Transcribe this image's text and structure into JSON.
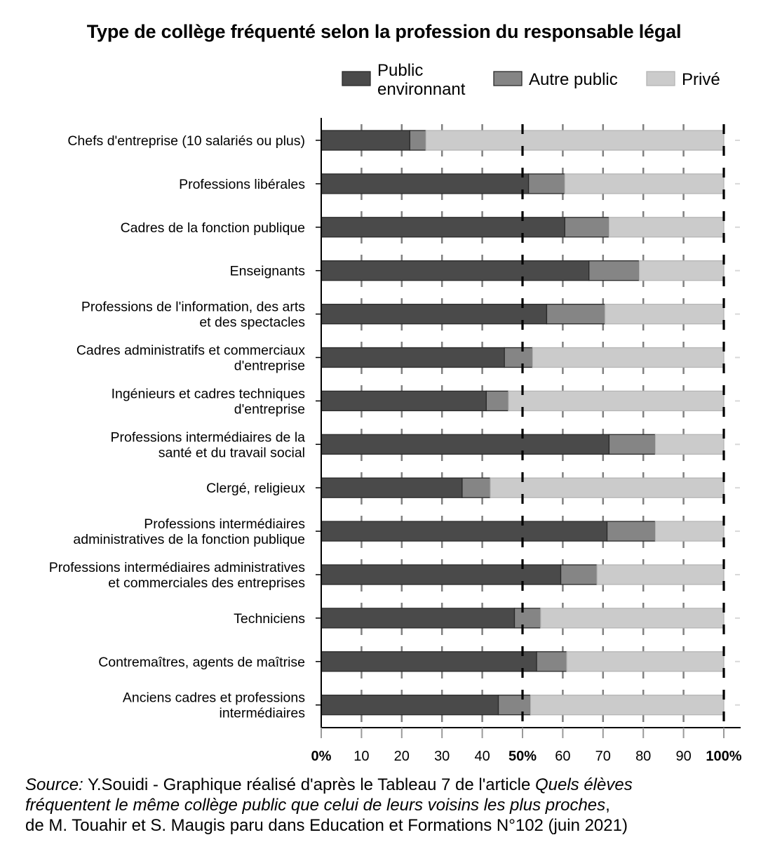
{
  "chart_data": {
    "type": "bar",
    "orientation": "horizontal",
    "stacked": true,
    "title": "Type de collège fréquenté selon la profession du responsable légal",
    "categories": [
      "Chefs d'entreprise (10 salariés ou plus)",
      "Professions libérales",
      "Cadres de la fonction publique",
      "Enseignants",
      "Professions de l'information, des arts et des spectacles",
      "Cadres administratifs et commerciaux d'entreprise",
      "Ingénieurs et cadres techniques d'entreprise",
      "Professions intermédiaires de la santé et du travail social",
      "Clergé, religieux",
      "Professions intermédiaires administratives de la fonction publique",
      "Professions intermédiaires administratives et commerciales des entreprises",
      "Techniciens",
      "Contremaîtres, agents de maîtrise",
      "Anciens cadres et professions intermédiaires"
    ],
    "category_lines": [
      [
        "Chefs d'entreprise (10 salariés ou plus)"
      ],
      [
        "Professions libérales"
      ],
      [
        "Cadres de la fonction publique"
      ],
      [
        "Enseignants"
      ],
      [
        "Professions de l'information, des arts",
        "et des spectacles"
      ],
      [
        "Cadres administratifs et commerciaux",
        "d'entreprise"
      ],
      [
        "Ingénieurs et cadres techniques",
        "d'entreprise"
      ],
      [
        "Professions intermédiaires de la",
        "santé et du travail social"
      ],
      [
        "Clergé, religieux"
      ],
      [
        "Professions intermédiaires",
        "administratives de la fonction publique"
      ],
      [
        "Professions intermédiaires administratives",
        "et commerciales des entreprises"
      ],
      [
        "Techniciens"
      ],
      [
        "Contremaîtres, agents de maîtrise"
      ],
      [
        "Anciens cadres et professions",
        "intermédiaires"
      ]
    ],
    "series": [
      {
        "name": "Public environnant",
        "legend_lines": [
          "Public",
          "environnant"
        ],
        "color": "#4a4a4a",
        "values": [
          22,
          51.5,
          60.5,
          66.5,
          56,
          45.5,
          41,
          71.5,
          35,
          71,
          59.5,
          48,
          53.5,
          44
        ]
      },
      {
        "name": "Autre public",
        "legend_lines": [
          "Autre public"
        ],
        "color": "#858585",
        "values": [
          4,
          9,
          11,
          12.5,
          14.5,
          7,
          5.5,
          11.5,
          7,
          12,
          9,
          6.5,
          7.5,
          8
        ]
      },
      {
        "name": "Privé",
        "legend_lines": [
          "Privé"
        ],
        "color": "#cbcbcb",
        "values": [
          74,
          39.5,
          28.5,
          21,
          29.5,
          47.5,
          53.5,
          17,
          58,
          17,
          31.5,
          45.5,
          39,
          48
        ]
      }
    ],
    "xlim": [
      0,
      100
    ],
    "x_ticks": [
      0,
      10,
      20,
      30,
      40,
      50,
      60,
      70,
      80,
      90,
      100
    ],
    "x_tick_labels": [
      "0%",
      "10",
      "20",
      "30",
      "40",
      "50%",
      "60",
      "70",
      "80",
      "90",
      "100%"
    ],
    "x_tick_bold": [
      true,
      false,
      false,
      false,
      false,
      true,
      false,
      false,
      false,
      false,
      true
    ],
    "reference_lines": [
      50,
      100
    ],
    "grid": "vertical dashed",
    "legend_position": "top-right",
    "xlabel": "",
    "ylabel": ""
  },
  "source": {
    "line1_prefix_italic": "Source:",
    "line1_text": " Y.Souidi - Graphique réalisé d'après le Tableau 7 de l'article ",
    "line1_title_italic": "Quels élèves",
    "line2_title_italic": "fréquentent le même collège public que celui de leurs voisins les plus proches",
    "line2_suffix": ",",
    "line3_text": "de M. Touahir et S. Maugis paru dans Education et Formations N°102 (juin 2021)"
  }
}
